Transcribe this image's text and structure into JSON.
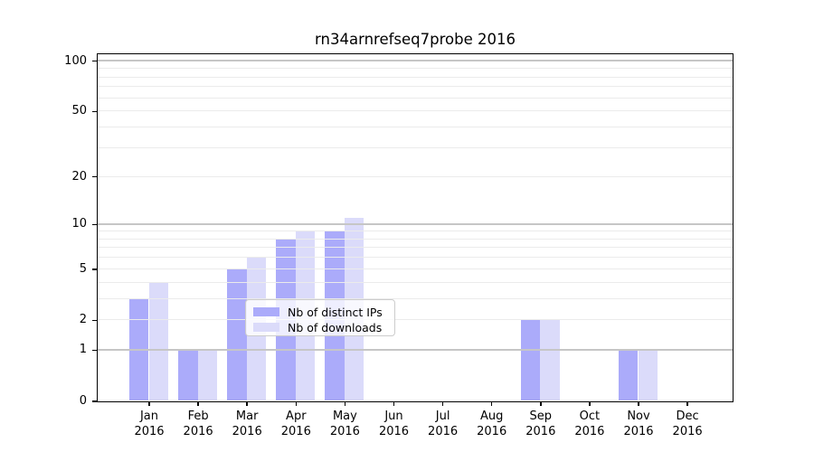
{
  "chart_data": {
    "type": "bar",
    "title": "rn34arnrefseq7probe 2016",
    "categories": [
      "Jan",
      "Feb",
      "Mar",
      "Apr",
      "May",
      "Jun",
      "Jul",
      "Aug",
      "Sep",
      "Oct",
      "Nov",
      "Dec"
    ],
    "category_year": "2016",
    "series": [
      {
        "name": "Nb of distinct IPs",
        "color": "#ababfa",
        "values": [
          3,
          1,
          5,
          8,
          9,
          0,
          0,
          0,
          2,
          0,
          1,
          0
        ]
      },
      {
        "name": "Nb of downloads",
        "color": "#dbdbfa",
        "values": [
          4,
          1,
          6,
          9,
          11,
          0,
          0,
          0,
          2,
          0,
          1,
          0
        ]
      }
    ],
    "xlabel": "",
    "ylabel": "",
    "yaxis": {
      "scale": "log1p",
      "ylim": [
        0,
        110
      ],
      "tick_values": [
        100,
        50,
        20,
        10,
        5,
        2,
        1,
        0
      ],
      "tick_labels": [
        "100",
        "50",
        "20",
        "10",
        "5",
        "2",
        "1",
        "0"
      ],
      "major_gridlines": [
        1,
        10,
        100
      ],
      "minor_gridlines": [
        2,
        3,
        4,
        5,
        6,
        7,
        8,
        9,
        20,
        30,
        40,
        50,
        60,
        70,
        80,
        90
      ]
    },
    "grid": true,
    "legend_position": "lower center",
    "colors": {
      "major_grid": "#c6c6c6",
      "minor_grid": "#ebebeb",
      "spine": "#000000",
      "background": "#ffffff"
    }
  }
}
